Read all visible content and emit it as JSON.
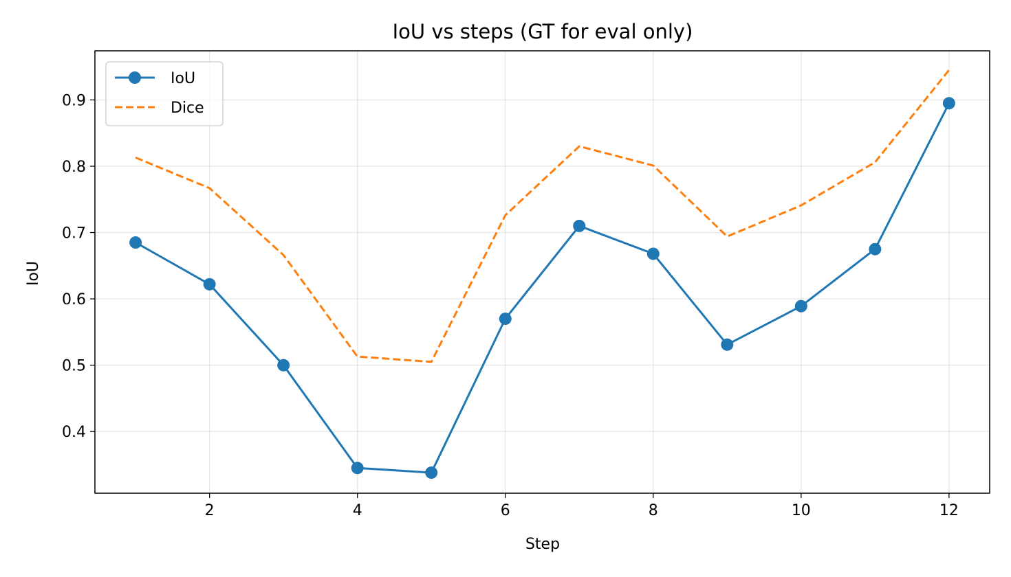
{
  "chart_data": {
    "type": "line",
    "title": "IoU vs steps (GT for eval only)",
    "xlabel": "Step",
    "ylabel": "IoU",
    "xlim": [
      0.45,
      12.55
    ],
    "ylim": [
      0.307,
      0.974
    ],
    "xticks": [
      2,
      4,
      6,
      8,
      10,
      12
    ],
    "yticks": [
      0.4,
      0.5,
      0.6,
      0.7,
      0.8,
      0.9
    ],
    "grid": true,
    "legend_position": "upper-left",
    "x": [
      1,
      2,
      3,
      4,
      5,
      6,
      7,
      8,
      9,
      10,
      11,
      12
    ],
    "series": [
      {
        "name": "IoU",
        "color": "#1f77b4",
        "style": "solid",
        "marker": "circle",
        "values": [
          0.685,
          0.622,
          0.5,
          0.345,
          0.338,
          0.57,
          0.71,
          0.668,
          0.531,
          0.589,
          0.675,
          0.895
        ]
      },
      {
        "name": "Dice",
        "color": "#ff7f0e",
        "style": "dashed",
        "marker": "none",
        "values": [
          0.813,
          0.767,
          0.666,
          0.513,
          0.505,
          0.726,
          0.83,
          0.801,
          0.694,
          0.741,
          0.806,
          0.945
        ]
      }
    ]
  }
}
